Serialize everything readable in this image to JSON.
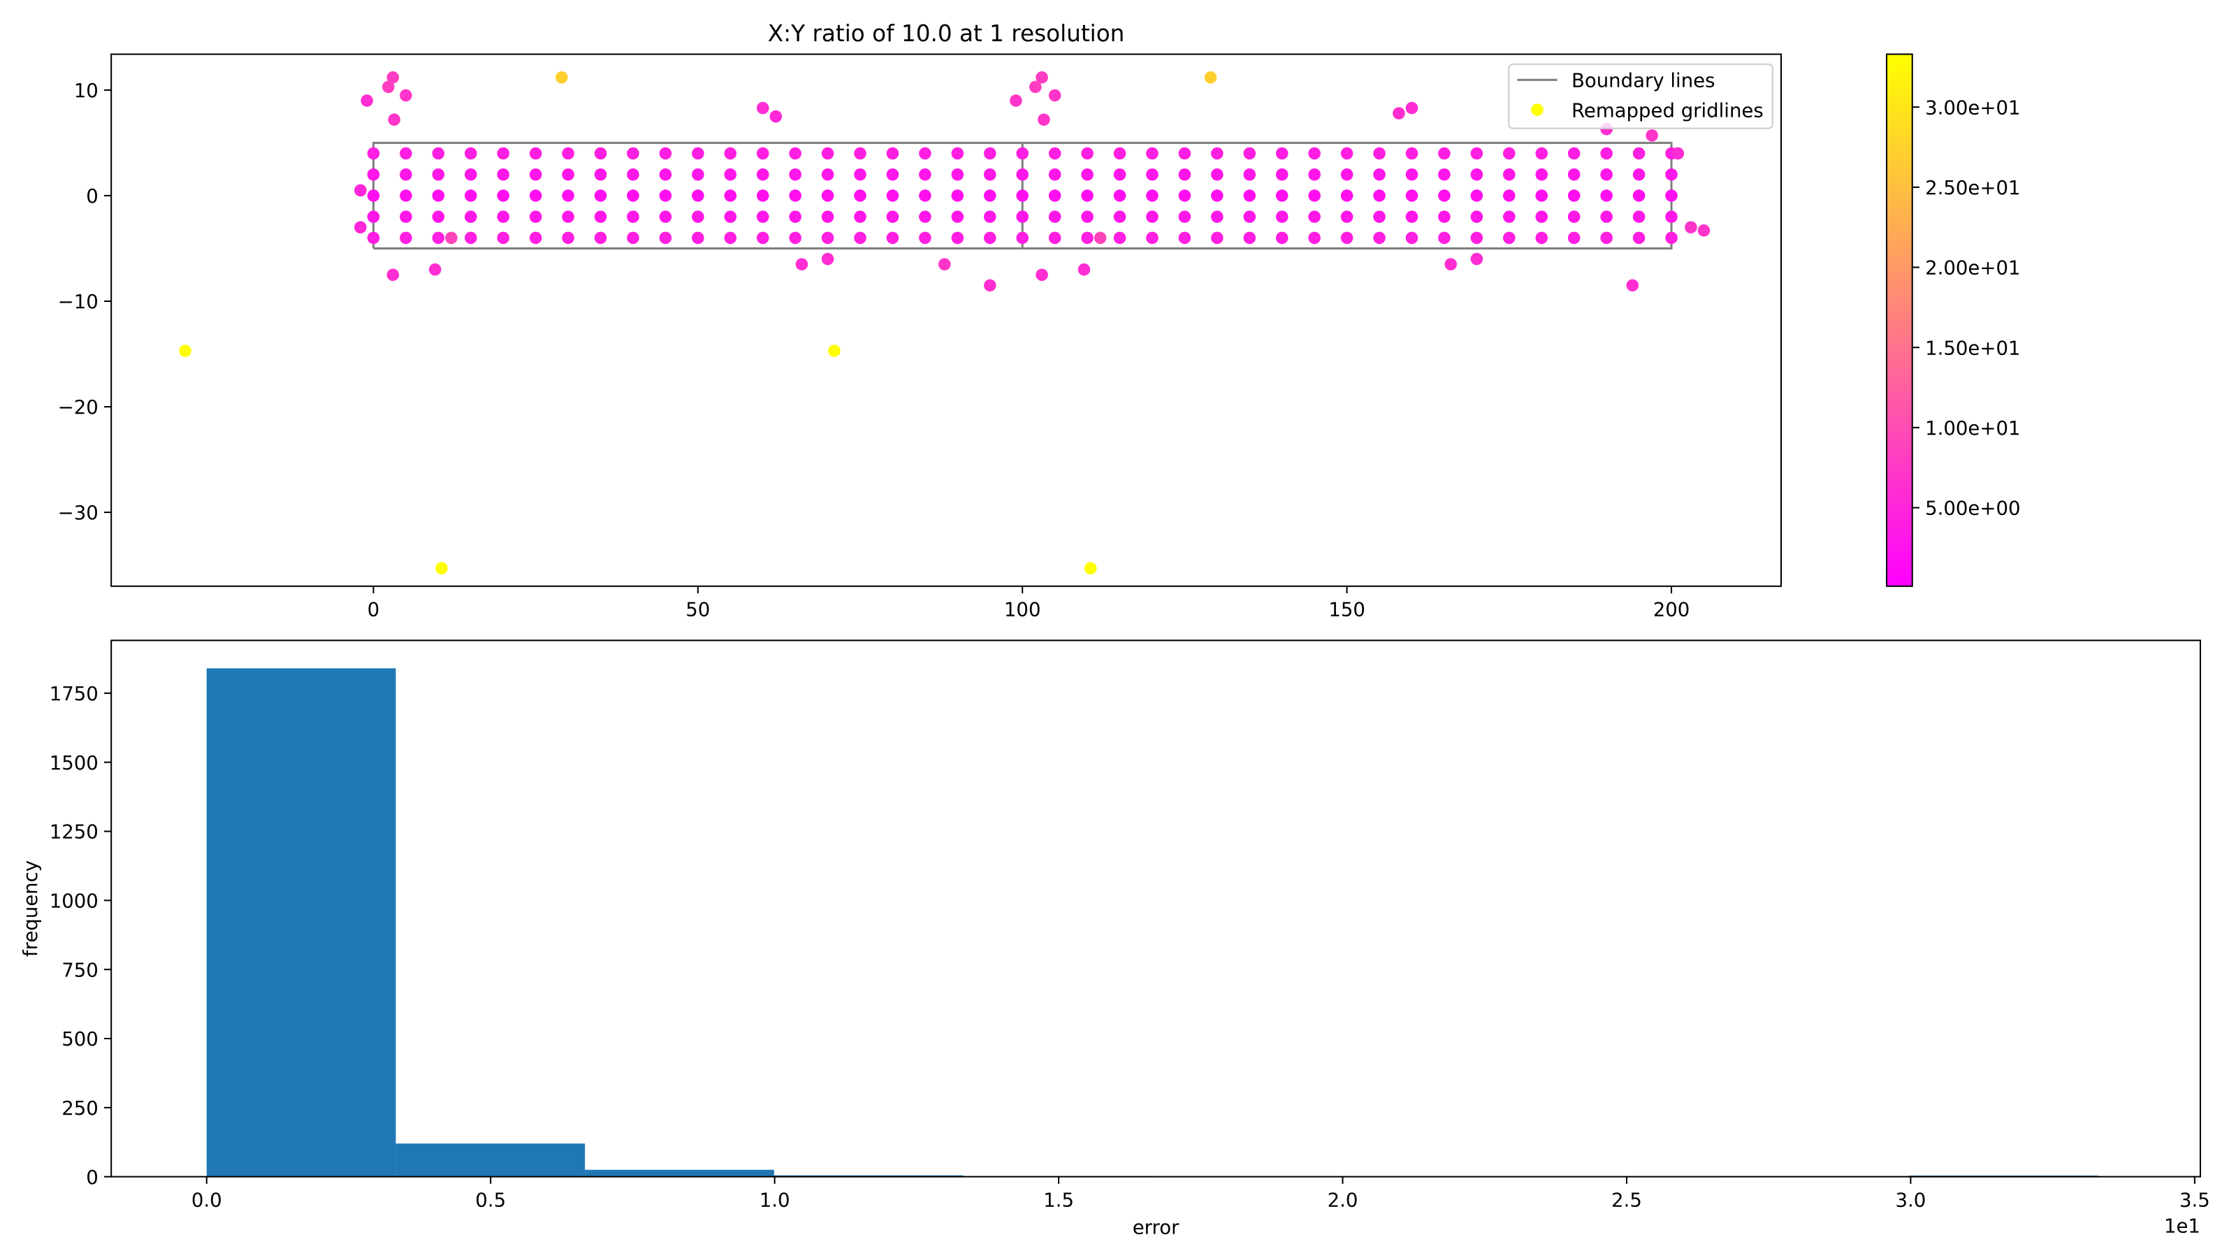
{
  "chart_data": [
    {
      "type": "scatter",
      "title": "X:Y ratio of 10.0 at 1 resolution",
      "xlim": [
        -40.4,
        216.9
      ],
      "ylim": [
        -37.0,
        13.4
      ],
      "xticks": [
        0,
        50,
        100,
        150,
        200
      ],
      "yticks": [
        {
          "value": -30,
          "label": "−30"
        },
        {
          "value": -20,
          "label": "−20"
        },
        {
          "value": -10,
          "label": "−10"
        },
        0,
        10
      ],
      "legend": "upper right",
      "colormap": "spring",
      "clim": [
        0.1,
        33.3
      ],
      "cticks": [
        {
          "value": 5,
          "label": "5.00e+00"
        },
        {
          "value": 10,
          "label": "1.00e+01"
        },
        {
          "value": 15,
          "label": "1.50e+01"
        },
        {
          "value": 20,
          "label": "2.00e+01"
        },
        {
          "value": 25,
          "label": "2.50e+01"
        },
        {
          "value": 30,
          "label": "3.00e+01"
        }
      ],
      "series": [
        {
          "name": "Boundary lines",
          "type": "line",
          "color": "#808080",
          "x": [
            0,
            100,
            100,
            0,
            0,
            null,
            100,
            200,
            200,
            100,
            100
          ],
          "y": [
            -5,
            -5,
            5,
            5,
            -5,
            null,
            -5,
            -5,
            5,
            5,
            -5
          ]
        },
        {
          "name": "Remapped gridlines",
          "type": "scatter",
          "x": [
            0,
            5,
            10,
            15,
            20,
            25,
            30,
            35,
            40,
            45,
            50,
            55,
            60,
            65,
            70,
            75,
            80,
            85,
            90,
            95,
            100,
            105,
            110,
            115,
            120,
            125,
            130,
            135,
            140,
            145,
            150,
            155,
            160,
            165,
            170,
            175,
            180,
            185,
            190,
            195,
            200,
            0,
            5,
            10,
            15,
            20,
            25,
            30,
            35,
            40,
            45,
            50,
            55,
            60,
            65,
            70,
            75,
            80,
            85,
            90,
            95,
            100,
            105,
            110,
            115,
            120,
            125,
            130,
            135,
            140,
            145,
            150,
            155,
            160,
            165,
            170,
            175,
            180,
            185,
            190,
            195,
            200,
            0,
            5,
            10,
            15,
            20,
            25,
            30,
            35,
            40,
            45,
            50,
            55,
            60,
            65,
            70,
            75,
            80,
            85,
            90,
            95,
            100,
            105,
            110,
            115,
            120,
            125,
            130,
            135,
            140,
            145,
            150,
            155,
            160,
            165,
            170,
            175,
            180,
            185,
            190,
            195,
            200,
            0,
            5,
            10,
            15,
            20,
            25,
            30,
            35,
            40,
            45,
            50,
            55,
            60,
            65,
            70,
            75,
            80,
            85,
            90,
            95,
            100,
            105,
            110,
            115,
            120,
            125,
            130,
            135,
            140,
            145,
            150,
            155,
            160,
            165,
            170,
            175,
            180,
            185,
            190,
            195,
            200,
            0,
            5,
            10,
            15,
            20,
            25,
            30,
            35,
            40,
            45,
            50,
            55,
            60,
            65,
            70,
            75,
            80,
            85,
            90,
            95,
            100,
            105,
            110,
            115,
            120,
            125,
            130,
            135,
            140,
            145,
            150,
            155,
            160,
            165,
            170,
            175,
            180,
            185,
            190,
            195,
            200,
            -29,
            71,
            10.5,
            110.5,
            29,
            129,
            3,
            2.3,
            -1,
            5,
            3.2,
            -2,
            3,
            9.5,
            12,
            62,
            60,
            66,
            70,
            88,
            95,
            103,
            102,
            99,
            105,
            103.3,
            103,
            109.5,
            112,
            160,
            158,
            166,
            170,
            190,
            194,
            201,
            205,
            197,
            -2,
            203
          ],
          "y": [
            -4,
            -4,
            -4,
            -4,
            -4,
            -4,
            -4,
            -4,
            -4,
            -4,
            -4,
            -4,
            -4,
            -4,
            -4,
            -4,
            -4,
            -4,
            -4,
            -4,
            -4,
            -4,
            -4,
            -4,
            -4,
            -4,
            -4,
            -4,
            -4,
            -4,
            -4,
            -4,
            -4,
            -4,
            -4,
            -4,
            -4,
            -4,
            -4,
            -4,
            -4,
            -2,
            -2,
            -2,
            -2,
            -2,
            -2,
            -2,
            -2,
            -2,
            -2,
            -2,
            -2,
            -2,
            -2,
            -2,
            -2,
            -2,
            -2,
            -2,
            -2,
            -2,
            -2,
            -2,
            -2,
            -2,
            -2,
            -2,
            -2,
            -2,
            -2,
            -2,
            -2,
            -2,
            -2,
            -2,
            -2,
            -2,
            -2,
            -2,
            -2,
            -2,
            0,
            0,
            0,
            0,
            0,
            0,
            0,
            0,
            0,
            0,
            0,
            0,
            0,
            0,
            0,
            0,
            0,
            0,
            0,
            0,
            0,
            0,
            0,
            0,
            0,
            0,
            0,
            0,
            0,
            0,
            0,
            0,
            0,
            0,
            0,
            0,
            0,
            0,
            0,
            0,
            0,
            2,
            2,
            2,
            2,
            2,
            2,
            2,
            2,
            2,
            2,
            2,
            2,
            2,
            2,
            2,
            2,
            2,
            2,
            2,
            2,
            2,
            2,
            2,
            2,
            2,
            2,
            2,
            2,
            2,
            2,
            2,
            2,
            2,
            2,
            2,
            2,
            2,
            2,
            2,
            2,
            2,
            4,
            4,
            4,
            4,
            4,
            4,
            4,
            4,
            4,
            4,
            4,
            4,
            4,
            4,
            4,
            4,
            4,
            4,
            4,
            4,
            4,
            4,
            4,
            4,
            4,
            4,
            4,
            4,
            4,
            4,
            4,
            4,
            4,
            4,
            4,
            4,
            4,
            4,
            4,
            4,
            4,
            -14.7,
            -14.7,
            -35.3,
            -35.3,
            11.2,
            11.2,
            11.2,
            10.3,
            9,
            9.5,
            7.2,
            0.5,
            -7.5,
            -7,
            -4,
            7.5,
            8.3,
            -6.5,
            -6,
            -6.5,
            -8.5,
            11.2,
            10.3,
            9,
            9.5,
            7.2,
            -7.5,
            -7,
            -4,
            8.3,
            7.8,
            -6.5,
            -6,
            6.3,
            -8.5,
            4,
            -3.3,
            5.7,
            -3,
            -3
          ],
          "c": [
            4,
            4,
            4,
            4,
            4,
            4,
            4,
            4,
            4,
            4,
            4,
            4,
            4,
            4,
            4,
            4,
            4,
            4,
            4,
            4,
            4,
            4,
            4,
            4,
            4,
            4,
            4,
            4,
            4,
            4,
            4,
            4,
            4,
            4,
            4,
            4,
            4,
            4,
            4,
            4,
            4,
            3,
            3,
            3,
            3,
            3,
            3,
            3,
            3,
            3,
            3,
            3,
            3,
            3,
            3,
            3,
            3,
            3,
            3,
            3,
            3,
            3,
            3,
            3,
            3,
            3,
            3,
            3,
            3,
            3,
            3,
            3,
            3,
            3,
            3,
            3,
            3,
            3,
            3,
            3,
            3,
            3,
            2,
            2,
            2,
            2,
            2,
            2,
            2,
            2,
            2,
            2,
            2,
            2,
            2,
            2,
            2,
            2,
            2,
            2,
            2,
            2,
            2,
            2,
            2,
            2,
            2,
            2,
            2,
            2,
            2,
            2,
            2,
            2,
            2,
            2,
            2,
            2,
            2,
            2,
            2,
            2,
            2,
            3,
            3,
            3,
            3,
            3,
            3,
            3,
            3,
            3,
            3,
            3,
            3,
            3,
            3,
            3,
            3,
            3,
            3,
            3,
            3,
            3,
            3,
            3,
            3,
            3,
            3,
            3,
            3,
            3,
            3,
            3,
            3,
            3,
            3,
            3,
            3,
            3,
            3,
            3,
            3,
            3,
            4,
            4,
            4,
            4,
            4,
            4,
            4,
            4,
            4,
            4,
            4,
            4,
            4,
            4,
            4,
            4,
            4,
            4,
            4,
            4,
            4,
            4,
            4,
            4,
            4,
            4,
            4,
            4,
            4,
            4,
            4,
            4,
            4,
            4,
            4,
            4,
            4,
            4,
            4,
            4,
            4,
            33,
            33,
            33,
            33,
            27,
            27,
            8,
            8,
            6,
            7,
            7,
            5,
            6,
            6,
            9,
            5,
            6,
            6,
            6,
            7,
            6,
            8,
            8,
            7,
            7,
            7,
            6,
            6,
            9,
            6,
            6,
            6,
            6,
            6,
            6,
            6,
            7,
            7,
            5,
            7
          ]
        }
      ]
    },
    {
      "type": "histogram",
      "xlabel": "error",
      "ylabel": "frequency",
      "x_offset_label": "1e1",
      "color": "#1f77b4",
      "bins": [
        0,
        3.33,
        6.66,
        9.99,
        13.32,
        16.65,
        19.98,
        23.31,
        26.64,
        29.97,
        33.3
      ],
      "counts": [
        1840,
        120,
        25,
        5,
        2,
        1,
        0,
        0,
        2,
        4
      ],
      "xlim": [
        -1.68,
        35.1
      ],
      "ylim": [
        0,
        1941
      ],
      "xticks": [
        {
          "value": 0,
          "label": "0.0"
        },
        {
          "value": 5,
          "label": "0.5"
        },
        {
          "value": 10,
          "label": "1.0"
        },
        {
          "value": 15,
          "label": "1.5"
        },
        {
          "value": 20,
          "label": "2.0"
        },
        {
          "value": 25,
          "label": "2.5"
        },
        {
          "value": 30,
          "label": "3.0"
        },
        {
          "value": 35,
          "label": "3.5"
        }
      ],
      "yticks": [
        0,
        250,
        500,
        750,
        1000,
        1250,
        1500,
        1750
      ]
    }
  ]
}
